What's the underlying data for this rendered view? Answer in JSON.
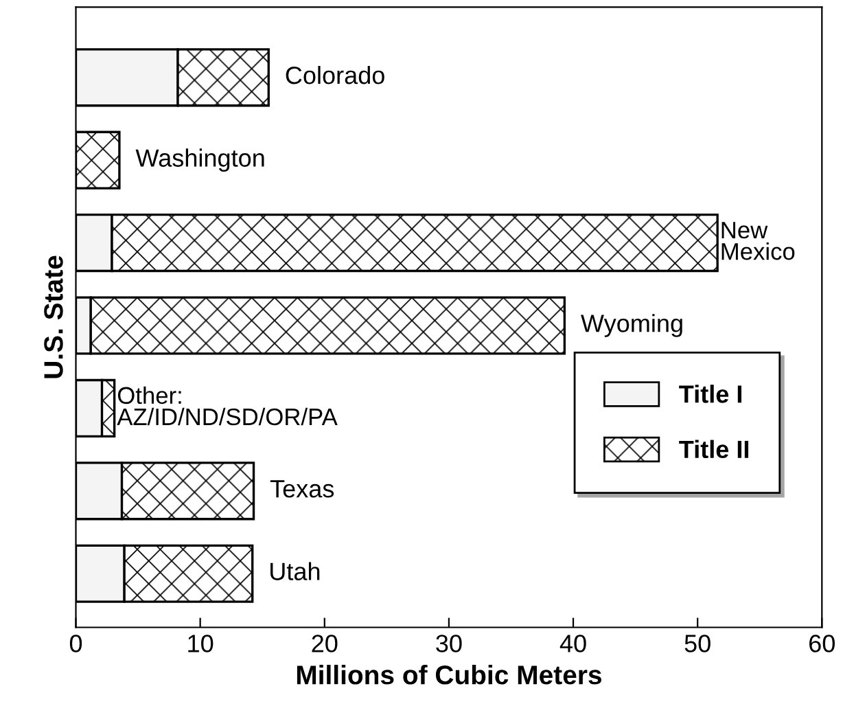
{
  "chart_data": {
    "type": "bar",
    "orientation": "horizontal",
    "stacked": true,
    "categories": [
      "Colorado",
      "Washington",
      "New\nMexico",
      "Wyoming",
      "Other:\nAZ/ID/ND/SD/OR/PA",
      "Texas",
      "Utah"
    ],
    "series": [
      {
        "name": "Title I",
        "color": "#f4f4f4",
        "values": [
          8.2,
          0,
          2.9,
          1.2,
          2.1,
          3.7,
          3.9
        ]
      },
      {
        "name": "Title II",
        "color": "#000000",
        "values": [
          7.3,
          3.5,
          48.7,
          38.1,
          1.0,
          10.6,
          10.3
        ]
      }
    ],
    "xlim": [
      0,
      60
    ],
    "xticks": [
      0,
      10,
      20,
      30,
      40,
      50,
      60
    ],
    "xlabel": "Millions of Cubic Meters",
    "ylabel": "U.S. State",
    "tick_labels": "x",
    "legend": "right",
    "grid": false
  }
}
